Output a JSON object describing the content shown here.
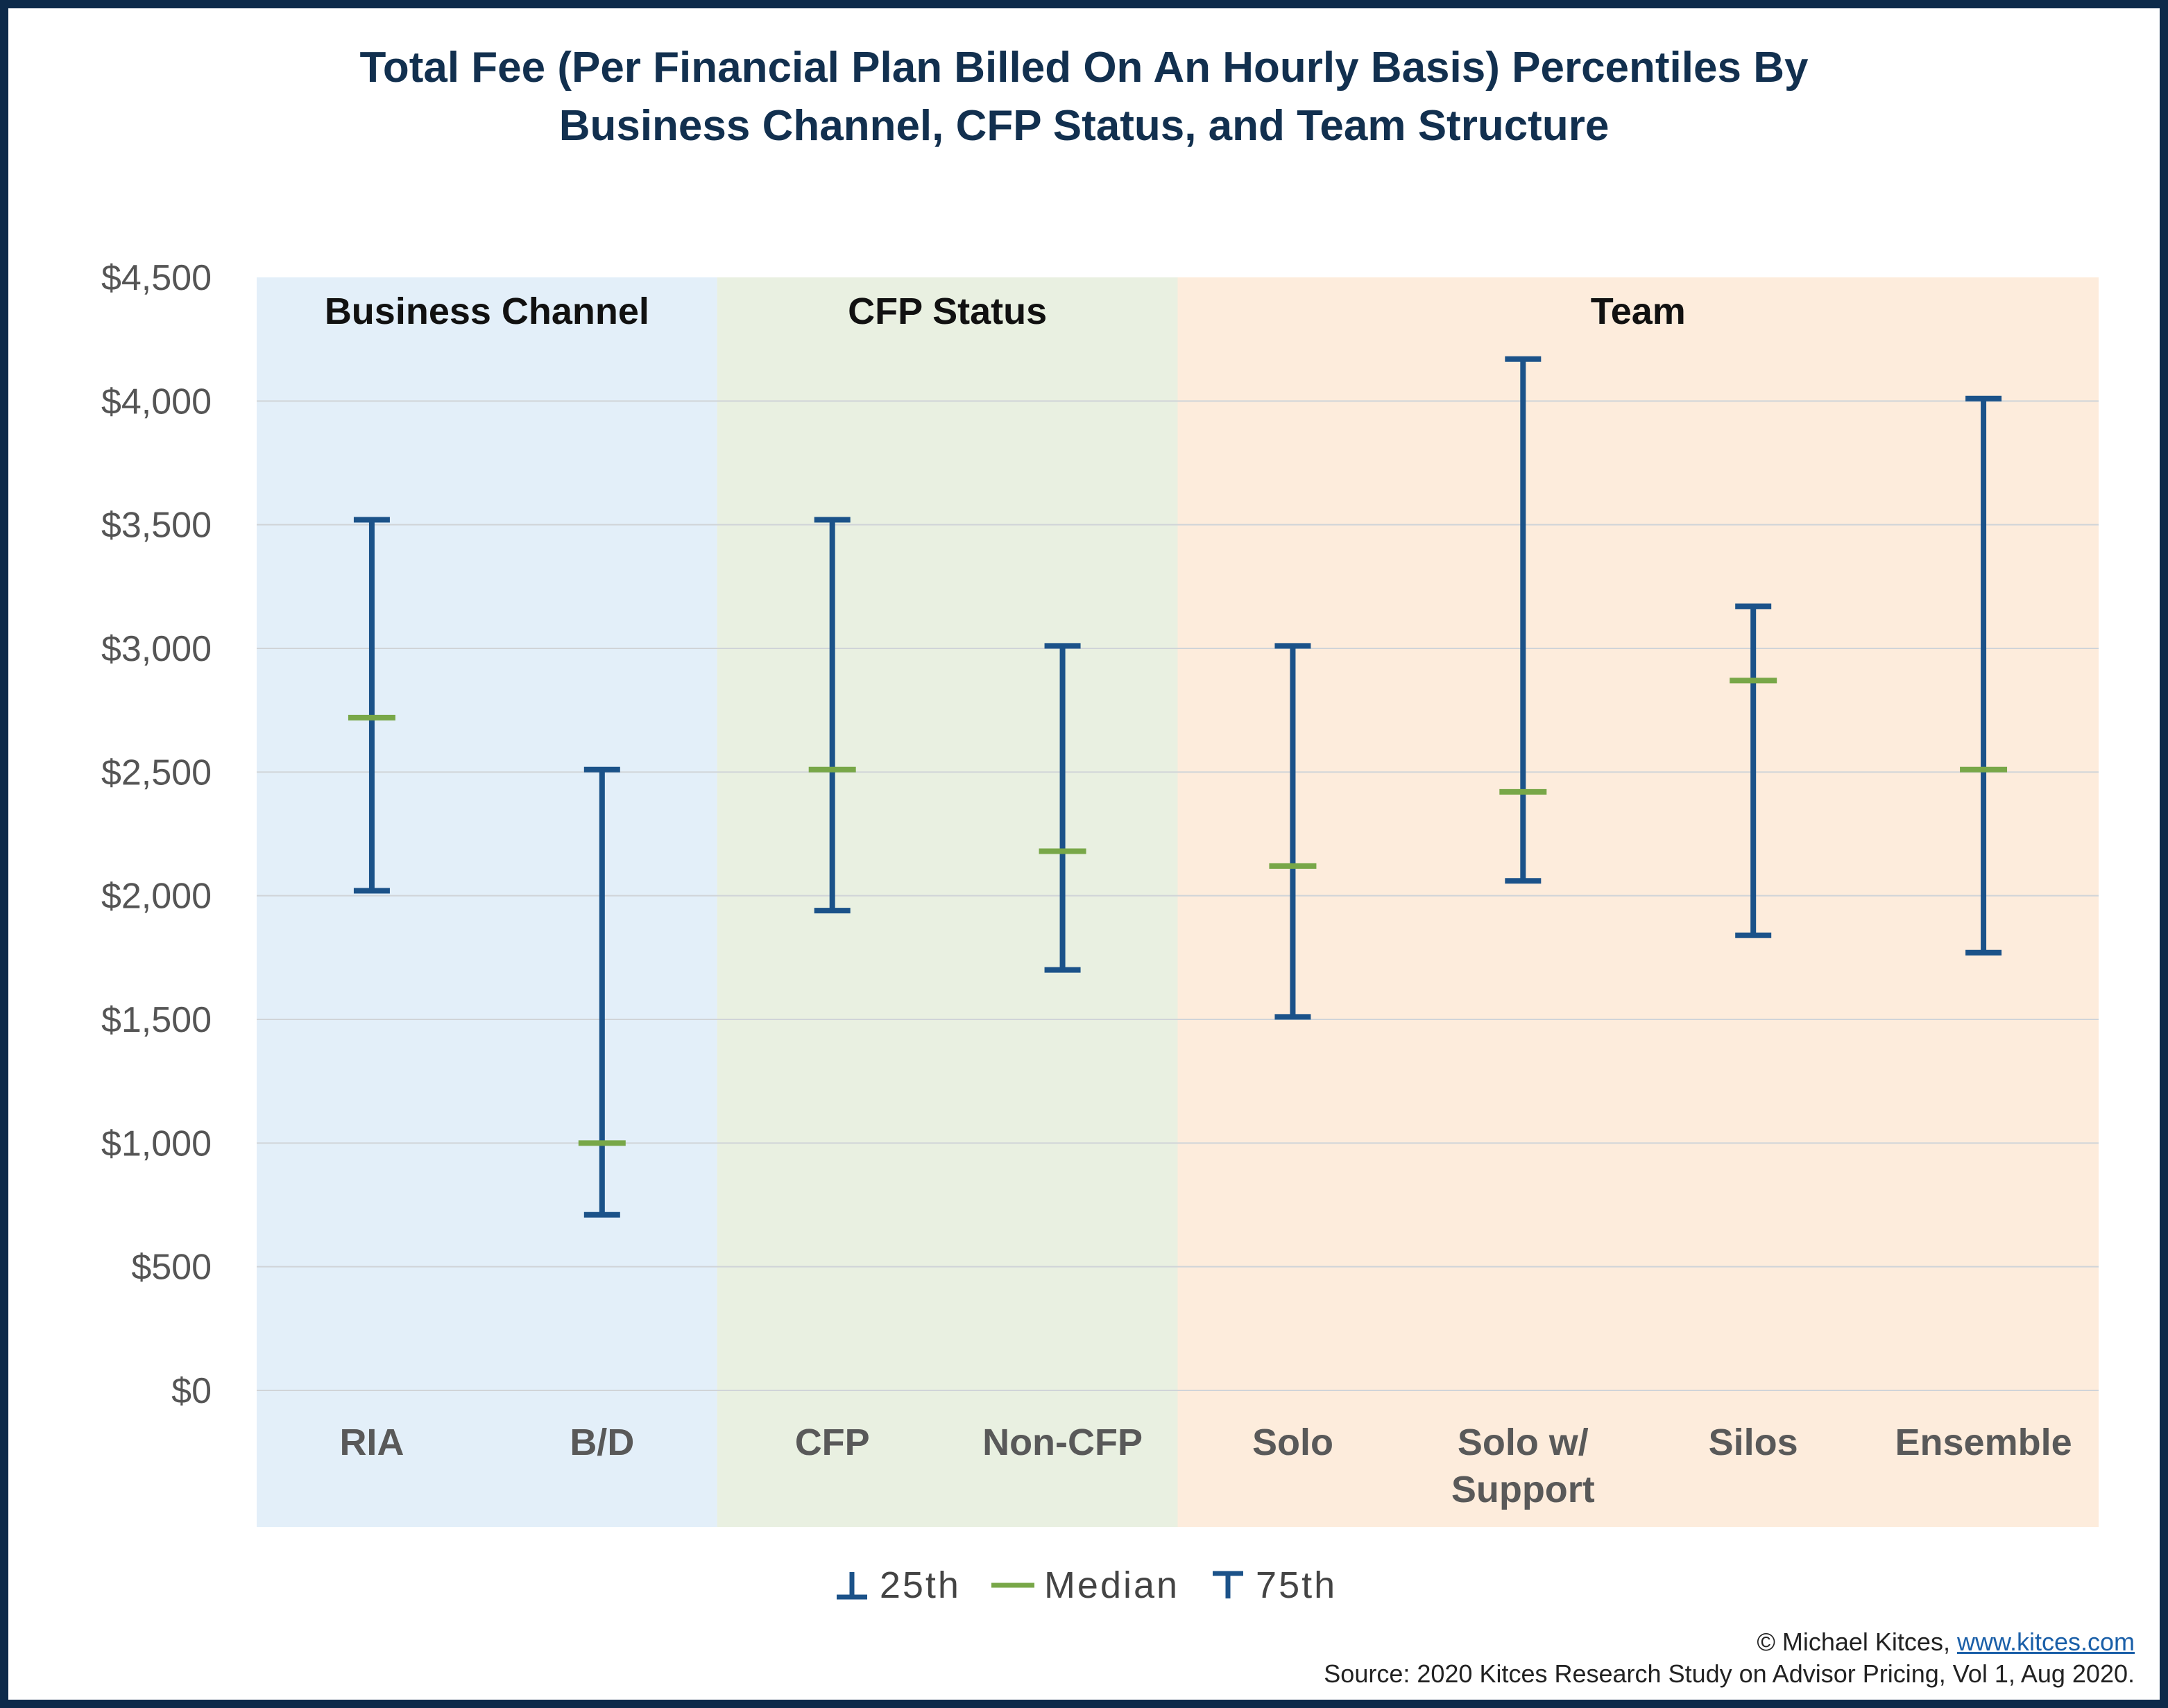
{
  "title_line1": "Total Fee (Per Financial Plan Billed On An Hourly Basis) Percentiles By",
  "title_line2": "Business Channel, CFP Status, and Team Structure",
  "legend": {
    "p25": "25th",
    "median": "Median",
    "p75": "75th"
  },
  "credit": {
    "copyright_prefix": "© Michael Kitces, ",
    "link_text": "www.kitces.com",
    "source": "Source: 2020 Kitces Research Study on Advisor Pricing, Vol 1, Aug 2020."
  },
  "colors": {
    "range": "#1b5289",
    "median": "#78a748",
    "panel_business": "#e3eff9",
    "panel_cfp": "#e9f0e1",
    "panel_team": "#fdecdc",
    "grid": "#d0d4d8",
    "axis_text": "#555555",
    "category_text": "#595959",
    "group_text": "#111111"
  },
  "chart_data": {
    "type": "error-bar",
    "title": "Total Fee (Per Financial Plan Billed On An Hourly Basis) Percentiles By Business Channel, CFP Status, and Team Structure",
    "ylim": [
      0,
      4500
    ],
    "yticks": [
      0,
      500,
      1000,
      1500,
      2000,
      2500,
      3000,
      3500,
      4000,
      4500
    ],
    "ytick_labels": [
      "$0",
      "$500",
      "$1,000",
      "$1,500",
      "$2,000",
      "$2,500",
      "$3,000",
      "$3,500",
      "$4,000",
      "$4,500"
    ],
    "grid": true,
    "legend_position": "bottom",
    "groups": [
      {
        "label": "Business Channel",
        "start": 0,
        "count": 2
      },
      {
        "label": "CFP Status",
        "start": 2,
        "count": 2
      },
      {
        "label": "Team",
        "start": 4,
        "count": 4
      }
    ],
    "categories": [
      [
        "RIA"
      ],
      [
        "B/D"
      ],
      [
        "CFP"
      ],
      [
        "Non-CFP"
      ],
      [
        "Solo"
      ],
      [
        "Solo w/",
        "Support"
      ],
      [
        "Silos"
      ],
      [
        "Ensemble"
      ]
    ],
    "series": [
      {
        "name": "25th",
        "values": [
          2020,
          710,
          1940,
          1700,
          1510,
          2060,
          1840,
          1770
        ]
      },
      {
        "name": "Median",
        "values": [
          2720,
          1000,
          2510,
          2180,
          2120,
          2420,
          2870,
          2510
        ]
      },
      {
        "name": "75th",
        "values": [
          3520,
          2510,
          3520,
          3010,
          3010,
          4170,
          3170,
          4010
        ]
      }
    ]
  }
}
